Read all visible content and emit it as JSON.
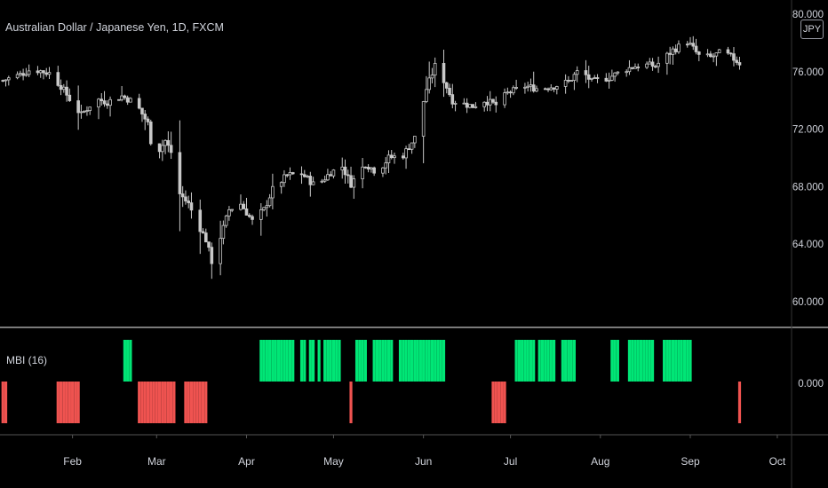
{
  "header": {
    "symbol_title": "Australian Dollar / Japanese Yen, 1D, FXCM",
    "currency_badge": "JPY"
  },
  "indicator": {
    "title": "MBI (16)"
  },
  "colors": {
    "background": "#000000",
    "candle": "#c8c8c8",
    "bull_bar": "#00e676",
    "bear_bar": "#ef5350",
    "separator": "#7a7a7a",
    "axis_text": "#d1d4dc"
  },
  "chart_data": [
    {
      "type": "candlestick",
      "title": "Australian Dollar / Japanese Yen, 1D, FXCM",
      "y_ticks": [
        "80.000",
        "76.000",
        "72.000",
        "68.000",
        "64.000",
        "60.000"
      ],
      "ylim": [
        59.5,
        80.5
      ],
      "x_ticks": [
        "Feb",
        "Mar",
        "Apr",
        "May",
        "Jun",
        "Jul",
        "Aug",
        "Sep",
        "Oct"
      ],
      "x_range": [
        "2020-01-07",
        "2020-10-05"
      ],
      "close_series": [
        [
          "2020-01-08",
          75.4
        ],
        [
          "2020-01-14",
          75.8
        ],
        [
          "2020-01-18",
          76.2
        ],
        [
          "2020-01-24",
          75.9
        ],
        [
          "2020-01-28",
          75.0
        ],
        [
          "2020-02-01",
          73.8
        ],
        [
          "2020-02-04",
          73.0
        ],
        [
          "2020-02-09",
          74.1
        ],
        [
          "2020-02-13",
          73.9
        ],
        [
          "2020-02-18",
          74.3
        ],
        [
          "2020-02-21",
          74.0
        ],
        [
          "2020-02-24",
          73.4
        ],
        [
          "2020-02-27",
          72.4
        ],
        [
          "2020-02-29",
          70.0
        ],
        [
          "2020-03-04",
          71.2
        ],
        [
          "2020-03-07",
          70.0
        ],
        [
          "2020-03-09",
          67.5
        ],
        [
          "2020-03-12",
          66.8
        ],
        [
          "2020-03-15",
          65.5
        ],
        [
          "2020-03-18",
          64.3
        ],
        [
          "2020-03-20",
          62.8
        ],
        [
          "2020-03-23",
          64.5
        ],
        [
          "2020-03-26",
          66.4
        ],
        [
          "2020-03-30",
          66.8
        ],
        [
          "2020-04-03",
          65.6
        ],
        [
          "2020-04-07",
          66.4
        ],
        [
          "2020-04-10",
          67.8
        ],
        [
          "2020-04-15",
          68.8
        ],
        [
          "2020-04-20",
          68.9
        ],
        [
          "2020-04-25",
          68.0
        ],
        [
          "2020-04-30",
          69.0
        ],
        [
          "2020-05-04",
          69.4
        ],
        [
          "2020-05-07",
          68.2
        ],
        [
          "2020-05-12",
          69.6
        ],
        [
          "2020-05-16",
          69.0
        ],
        [
          "2020-05-20",
          70.0
        ],
        [
          "2020-05-25",
          70.2
        ],
        [
          "2020-05-29",
          71.4
        ],
        [
          "2020-06-02",
          74.8
        ],
        [
          "2020-06-05",
          76.4
        ],
        [
          "2020-06-08",
          75.4
        ],
        [
          "2020-06-11",
          74.0
        ],
        [
          "2020-06-14",
          73.8
        ],
        [
          "2020-06-18",
          73.6
        ],
        [
          "2020-06-22",
          74.0
        ],
        [
          "2020-06-26",
          73.7
        ],
        [
          "2020-06-30",
          74.5
        ],
        [
          "2020-07-06",
          75.0
        ],
        [
          "2020-07-11",
          74.8
        ],
        [
          "2020-07-16",
          75.0
        ],
        [
          "2020-07-21",
          75.3
        ],
        [
          "2020-07-25",
          76.2
        ],
        [
          "2020-07-29",
          75.3
        ],
        [
          "2020-08-04",
          75.6
        ],
        [
          "2020-08-10",
          76.2
        ],
        [
          "2020-08-15",
          76.5
        ],
        [
          "2020-08-20",
          76.4
        ],
        [
          "2020-08-26",
          77.5
        ],
        [
          "2020-08-31",
          78.1
        ],
        [
          "2020-09-04",
          77.1
        ],
        [
          "2020-09-08",
          77.0
        ],
        [
          "2020-09-12",
          77.4
        ],
        [
          "2020-09-16",
          76.9
        ],
        [
          "2020-09-18",
          76.6
        ]
      ]
    },
    {
      "type": "bar",
      "title": "MBI (16)",
      "y_ticks": [
        "0.000"
      ],
      "ylim": [
        -1.2,
        1.2
      ],
      "series": [
        {
          "values": [
            [
              "2020-01-08",
              -1
            ],
            [
              "2020-01-09",
              -1
            ],
            [
              "2020-01-27",
              -1
            ],
            [
              "2020-01-28",
              -1
            ],
            [
              "2020-01-29",
              -1
            ],
            [
              "2020-01-30",
              -1
            ],
            [
              "2020-01-31",
              -1
            ],
            [
              "2020-02-01",
              -1
            ],
            [
              "2020-02-02",
              -1
            ],
            [
              "2020-02-03",
              -1
            ],
            [
              "2020-02-19",
              1
            ],
            [
              "2020-02-20",
              1
            ],
            [
              "2020-02-21",
              1
            ],
            [
              "2020-02-24",
              -1
            ],
            [
              "2020-02-25",
              -1
            ],
            [
              "2020-02-26",
              -1
            ],
            [
              "2020-02-27",
              -1
            ],
            [
              "2020-02-28",
              -1
            ],
            [
              "2020-02-29",
              -1
            ],
            [
              "2020-03-01",
              -1
            ],
            [
              "2020-03-02",
              -1
            ],
            [
              "2020-03-03",
              -1
            ],
            [
              "2020-03-04",
              -1
            ],
            [
              "2020-03-05",
              -1
            ],
            [
              "2020-03-06",
              -1
            ],
            [
              "2020-03-07",
              -1
            ],
            [
              "2020-03-11",
              -1
            ],
            [
              "2020-03-12",
              -1
            ],
            [
              "2020-03-13",
              -1
            ],
            [
              "2020-03-14",
              -1
            ],
            [
              "2020-03-15",
              -1
            ],
            [
              "2020-03-16",
              -1
            ],
            [
              "2020-03-17",
              -1
            ],
            [
              "2020-03-18",
              -1
            ],
            [
              "2020-04-06",
              1
            ],
            [
              "2020-04-07",
              1
            ],
            [
              "2020-04-08",
              1
            ],
            [
              "2020-04-09",
              1
            ],
            [
              "2020-04-10",
              1
            ],
            [
              "2020-04-11",
              1
            ],
            [
              "2020-04-12",
              1
            ],
            [
              "2020-04-13",
              1
            ],
            [
              "2020-04-14",
              1
            ],
            [
              "2020-04-15",
              1
            ],
            [
              "2020-04-16",
              1
            ],
            [
              "2020-04-17",
              1
            ],
            [
              "2020-04-20",
              1
            ],
            [
              "2020-04-21",
              1
            ],
            [
              "2020-04-23",
              1
            ],
            [
              "2020-04-24",
              1
            ],
            [
              "2020-04-26",
              1
            ],
            [
              "2020-04-28",
              1
            ],
            [
              "2020-04-29",
              1
            ],
            [
              "2020-04-30",
              1
            ],
            [
              "2020-05-01",
              1
            ],
            [
              "2020-05-02",
              1
            ],
            [
              "2020-05-03",
              1
            ],
            [
              "2020-05-07",
              -1
            ],
            [
              "2020-05-09",
              1
            ],
            [
              "2020-05-10",
              1
            ],
            [
              "2020-05-11",
              1
            ],
            [
              "2020-05-12",
              1
            ],
            [
              "2020-05-15",
              1
            ],
            [
              "2020-05-16",
              1
            ],
            [
              "2020-05-17",
              1
            ],
            [
              "2020-05-18",
              1
            ],
            [
              "2020-05-19",
              1
            ],
            [
              "2020-05-20",
              1
            ],
            [
              "2020-05-21",
              1
            ],
            [
              "2020-05-24",
              1
            ],
            [
              "2020-05-25",
              1
            ],
            [
              "2020-05-26",
              1
            ],
            [
              "2020-05-27",
              1
            ],
            [
              "2020-05-28",
              1
            ],
            [
              "2020-05-29",
              1
            ],
            [
              "2020-05-30",
              1
            ],
            [
              "2020-05-31",
              1
            ],
            [
              "2020-06-01",
              1
            ],
            [
              "2020-06-02",
              1
            ],
            [
              "2020-06-03",
              1
            ],
            [
              "2020-06-04",
              1
            ],
            [
              "2020-06-05",
              1
            ],
            [
              "2020-06-06",
              1
            ],
            [
              "2020-06-07",
              1
            ],
            [
              "2020-06-08",
              1
            ],
            [
              "2020-06-25",
              -1
            ],
            [
              "2020-06-26",
              -1
            ],
            [
              "2020-06-27",
              -1
            ],
            [
              "2020-06-28",
              -1
            ],
            [
              "2020-06-29",
              -1
            ],
            [
              "2020-07-03",
              1
            ],
            [
              "2020-07-04",
              1
            ],
            [
              "2020-07-05",
              1
            ],
            [
              "2020-07-06",
              1
            ],
            [
              "2020-07-07",
              1
            ],
            [
              "2020-07-08",
              1
            ],
            [
              "2020-07-09",
              1
            ],
            [
              "2020-07-11",
              1
            ],
            [
              "2020-07-12",
              1
            ],
            [
              "2020-07-13",
              1
            ],
            [
              "2020-07-14",
              1
            ],
            [
              "2020-07-15",
              1
            ],
            [
              "2020-07-16",
              1
            ],
            [
              "2020-07-19",
              1
            ],
            [
              "2020-07-20",
              1
            ],
            [
              "2020-07-21",
              1
            ],
            [
              "2020-07-22",
              1
            ],
            [
              "2020-07-23",
              1
            ],
            [
              "2020-08-05",
              1
            ],
            [
              "2020-08-06",
              1
            ],
            [
              "2020-08-07",
              1
            ],
            [
              "2020-08-11",
              1
            ],
            [
              "2020-08-12",
              1
            ],
            [
              "2020-08-13",
              1
            ],
            [
              "2020-08-14",
              1
            ],
            [
              "2020-08-15",
              1
            ],
            [
              "2020-08-16",
              1
            ],
            [
              "2020-08-17",
              1
            ],
            [
              "2020-08-18",
              1
            ],
            [
              "2020-08-19",
              1
            ],
            [
              "2020-08-23",
              1
            ],
            [
              "2020-08-24",
              1
            ],
            [
              "2020-08-25",
              1
            ],
            [
              "2020-08-26",
              1
            ],
            [
              "2020-08-27",
              1
            ],
            [
              "2020-08-28",
              1
            ],
            [
              "2020-08-29",
              1
            ],
            [
              "2020-08-30",
              1
            ],
            [
              "2020-08-31",
              1
            ],
            [
              "2020-09-01",
              1
            ],
            [
              "2020-09-18",
              -1
            ]
          ]
        }
      ]
    }
  ]
}
